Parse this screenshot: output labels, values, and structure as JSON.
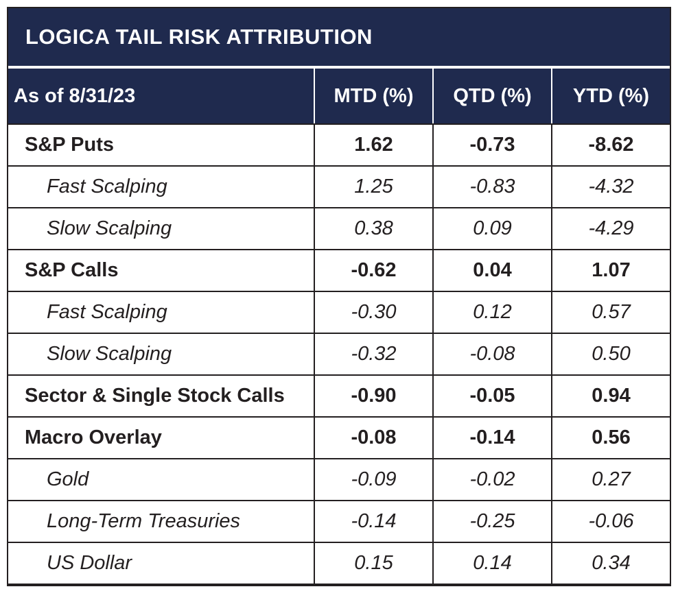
{
  "chart_data": {
    "type": "table",
    "title": "LOGICA TAIL RISK ATTRIBUTION",
    "header": {
      "label_column": "As of 8/31/23",
      "value_columns": [
        "MTD (%)",
        "QTD (%)",
        "YTD (%)"
      ]
    },
    "rows": [
      {
        "label": "S&P Puts",
        "level": "parent",
        "mtd": "1.62",
        "qtd": "-0.73",
        "ytd": "-8.62"
      },
      {
        "label": "Fast Scalping",
        "level": "child",
        "mtd": "1.25",
        "qtd": "-0.83",
        "ytd": "-4.32"
      },
      {
        "label": "Slow Scalping",
        "level": "child",
        "mtd": "0.38",
        "qtd": "0.09",
        "ytd": "-4.29"
      },
      {
        "label": "S&P Calls",
        "level": "parent",
        "mtd": "-0.62",
        "qtd": "0.04",
        "ytd": "1.07"
      },
      {
        "label": "Fast Scalping",
        "level": "child",
        "mtd": "-0.30",
        "qtd": "0.12",
        "ytd": "0.57"
      },
      {
        "label": "Slow Scalping",
        "level": "child",
        "mtd": "-0.32",
        "qtd": "-0.08",
        "ytd": "0.50"
      },
      {
        "label": "Sector & Single Stock Calls",
        "level": "parent",
        "mtd": "-0.90",
        "qtd": "-0.05",
        "ytd": "0.94"
      },
      {
        "label": "Macro Overlay",
        "level": "parent",
        "mtd": "-0.08",
        "qtd": "-0.14",
        "ytd": "0.56"
      },
      {
        "label": "Gold",
        "level": "child",
        "mtd": "-0.09",
        "qtd": "-0.02",
        "ytd": "0.27"
      },
      {
        "label": "Long-Term Treasuries",
        "level": "child",
        "mtd": "-0.14",
        "qtd": "-0.25",
        "ytd": "-0.06"
      },
      {
        "label": "US Dollar",
        "level": "child",
        "mtd": "0.15",
        "qtd": "0.14",
        "ytd": "0.34"
      }
    ],
    "colors": {
      "navy_header": "#1F2A4E",
      "border_dark": "#231F20",
      "text_dark": "#231F20",
      "header_text": "#FFFFFF",
      "background": "#FFFFFF"
    },
    "layout": {
      "legend": "none",
      "grid": "on"
    }
  }
}
